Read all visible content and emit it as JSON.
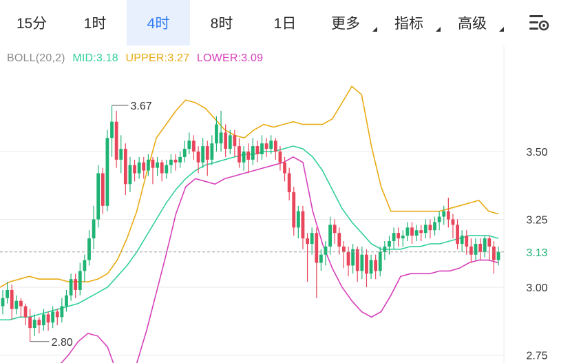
{
  "tabs": [
    {
      "label": "15分",
      "active": false,
      "dropdown": false
    },
    {
      "label": "1时",
      "active": false,
      "dropdown": false
    },
    {
      "label": "4时",
      "active": true,
      "dropdown": false
    },
    {
      "label": "8时",
      "active": false,
      "dropdown": false
    },
    {
      "label": "1日",
      "active": false,
      "dropdown": false
    },
    {
      "label": "更多",
      "active": false,
      "dropdown": true
    },
    {
      "label": "指标",
      "active": false,
      "dropdown": true
    },
    {
      "label": "高级",
      "active": false,
      "dropdown": true
    }
  ],
  "settings_icon": "chart-settings-gear-icon",
  "indicator": {
    "name": "BOLL(20,2)",
    "mid": "MID:3.18",
    "upper": "UPPER:3.27",
    "lower": "LOWER:3.09"
  },
  "colors": {
    "up": "#1fb374",
    "down": "#e8465b",
    "mid": "#2fcf9a",
    "upper": "#e9aa10",
    "lower": "#d63fba",
    "grid": "#e9e9e9",
    "active_tab_bg": "#e7f0fc",
    "active_tab_text": "#2f7df6",
    "axis_text": "#333333"
  },
  "chart_data": {
    "type": "candlestick",
    "y_axis_ticks": [
      "3.50",
      "3.25",
      "3.00",
      "2.75"
    ],
    "ylim": [
      2.73,
      3.78
    ],
    "current_price_label": "3.13",
    "current_price": 3.13,
    "max_label": "3.67",
    "max_value": 3.67,
    "min_label": "2.80",
    "min_value": 2.8,
    "candles": [
      [
        2.93,
        2.96,
        2.9,
        2.99
      ],
      [
        2.96,
        2.99,
        2.94,
        3.02
      ],
      [
        2.99,
        2.92,
        2.88,
        3.01
      ],
      [
        2.92,
        2.95,
        2.9,
        2.97
      ],
      [
        2.95,
        2.93,
        2.89,
        2.96
      ],
      [
        2.93,
        2.89,
        2.86,
        2.94
      ],
      [
        2.89,
        2.85,
        2.8,
        2.92
      ],
      [
        2.85,
        2.88,
        2.82,
        2.9
      ],
      [
        2.88,
        2.86,
        2.83,
        2.89
      ],
      [
        2.86,
        2.9,
        2.84,
        2.92
      ],
      [
        2.9,
        2.87,
        2.84,
        2.91
      ],
      [
        2.87,
        2.91,
        2.85,
        2.93
      ],
      [
        2.91,
        2.89,
        2.86,
        2.92
      ],
      [
        2.89,
        2.93,
        2.87,
        2.96
      ],
      [
        2.93,
        2.97,
        2.91,
        2.99
      ],
      [
        2.97,
        3.03,
        2.95,
        3.05
      ],
      [
        3.03,
        2.99,
        2.96,
        3.05
      ],
      [
        2.99,
        3.06,
        2.97,
        3.09
      ],
      [
        3.06,
        3.1,
        3.02,
        3.12
      ],
      [
        3.1,
        3.18,
        3.08,
        3.21
      ],
      [
        3.18,
        3.25,
        3.14,
        3.3
      ],
      [
        3.25,
        3.42,
        3.22,
        3.45
      ],
      [
        3.42,
        3.3,
        3.27,
        3.44
      ],
      [
        3.3,
        3.55,
        3.28,
        3.58
      ],
      [
        3.55,
        3.61,
        3.48,
        3.67
      ],
      [
        3.61,
        3.47,
        3.44,
        3.65
      ],
      [
        3.47,
        3.51,
        3.42,
        3.56
      ],
      [
        3.51,
        3.38,
        3.34,
        3.53
      ],
      [
        3.38,
        3.45,
        3.35,
        3.48
      ],
      [
        3.45,
        3.42,
        3.39,
        3.47
      ],
      [
        3.42,
        3.46,
        3.4,
        3.48
      ],
      [
        3.46,
        3.43,
        3.4,
        3.48
      ],
      [
        3.43,
        3.47,
        3.41,
        3.49
      ],
      [
        3.47,
        3.44,
        3.38,
        3.48
      ],
      [
        3.44,
        3.46,
        3.41,
        3.48
      ],
      [
        3.46,
        3.42,
        3.39,
        3.47
      ],
      [
        3.42,
        3.45,
        3.4,
        3.47
      ],
      [
        3.45,
        3.47,
        3.42,
        3.49
      ],
      [
        3.47,
        3.46,
        3.43,
        3.49
      ],
      [
        3.46,
        3.48,
        3.44,
        3.5
      ],
      [
        3.48,
        3.51,
        3.46,
        3.54
      ],
      [
        3.51,
        3.54,
        3.49,
        3.57
      ],
      [
        3.54,
        3.5,
        3.47,
        3.56
      ],
      [
        3.5,
        3.46,
        3.42,
        3.52
      ],
      [
        3.46,
        3.52,
        3.44,
        3.55
      ],
      [
        3.52,
        3.47,
        3.41,
        3.54
      ],
      [
        3.47,
        3.53,
        3.45,
        3.56
      ],
      [
        3.53,
        3.6,
        3.5,
        3.63
      ],
      [
        3.53,
        3.57,
        3.5,
        3.65
      ],
      [
        3.57,
        3.51,
        3.48,
        3.6
      ],
      [
        3.51,
        3.56,
        3.49,
        3.58
      ],
      [
        3.56,
        3.52,
        3.48,
        3.58
      ],
      [
        3.52,
        3.46,
        3.44,
        3.55
      ],
      [
        3.46,
        3.5,
        3.43,
        3.52
      ],
      [
        3.5,
        3.47,
        3.42,
        3.53
      ],
      [
        3.47,
        3.52,
        3.45,
        3.55
      ],
      [
        3.52,
        3.49,
        3.46,
        3.54
      ],
      [
        3.49,
        3.53,
        3.47,
        3.56
      ],
      [
        3.53,
        3.51,
        3.48,
        3.55
      ],
      [
        3.51,
        3.54,
        3.49,
        3.56
      ],
      [
        3.54,
        3.5,
        3.47,
        3.55
      ],
      [
        3.5,
        3.46,
        3.43,
        3.52
      ],
      [
        3.46,
        3.42,
        3.39,
        3.48
      ],
      [
        3.42,
        3.35,
        3.32,
        3.44
      ],
      [
        3.35,
        3.22,
        3.19,
        3.37
      ],
      [
        3.22,
        3.28,
        3.18,
        3.3
      ],
      [
        3.28,
        3.18,
        3.14,
        3.3
      ],
      [
        3.18,
        3.16,
        3.02,
        3.2
      ],
      [
        3.16,
        3.2,
        3.12,
        3.22
      ],
      [
        3.2,
        3.09,
        2.96,
        3.22
      ],
      [
        3.09,
        3.12,
        3.06,
        3.14
      ],
      [
        3.12,
        3.15,
        3.08,
        3.17
      ],
      [
        3.15,
        3.23,
        3.12,
        3.26
      ],
      [
        3.23,
        3.2,
        3.16,
        3.25
      ],
      [
        3.2,
        3.15,
        3.12,
        3.22
      ],
      [
        3.15,
        3.13,
        3.07,
        3.17
      ],
      [
        3.13,
        3.08,
        3.04,
        3.15
      ],
      [
        3.08,
        3.14,
        3.05,
        3.16
      ],
      [
        3.14,
        3.06,
        3.02,
        3.15
      ],
      [
        3.06,
        3.12,
        3.03,
        3.15
      ],
      [
        3.12,
        3.05,
        3.0,
        3.14
      ],
      [
        3.05,
        3.1,
        3.03,
        3.12
      ],
      [
        3.1,
        3.06,
        3.03,
        3.12
      ],
      [
        3.06,
        3.13,
        3.04,
        3.15
      ],
      [
        3.13,
        3.15,
        3.1,
        3.17
      ],
      [
        3.15,
        3.17,
        3.12,
        3.19
      ],
      [
        3.17,
        3.2,
        3.14,
        3.22
      ],
      [
        3.2,
        3.18,
        3.15,
        3.22
      ],
      [
        3.18,
        3.19,
        3.15,
        3.21
      ],
      [
        3.19,
        3.22,
        3.17,
        3.24
      ],
      [
        3.22,
        3.19,
        3.16,
        3.24
      ],
      [
        3.19,
        3.21,
        3.17,
        3.23
      ],
      [
        3.21,
        3.2,
        3.17,
        3.23
      ],
      [
        3.2,
        3.23,
        3.18,
        3.25
      ],
      [
        3.23,
        3.21,
        3.18,
        3.25
      ],
      [
        3.21,
        3.24,
        3.19,
        3.26
      ],
      [
        3.24,
        3.26,
        3.21,
        3.28
      ],
      [
        3.26,
        3.28,
        3.23,
        3.3
      ],
      [
        3.28,
        3.25,
        3.22,
        3.33
      ],
      [
        3.25,
        3.23,
        3.18,
        3.27
      ],
      [
        3.23,
        3.16,
        3.14,
        3.25
      ],
      [
        3.16,
        3.19,
        3.13,
        3.21
      ],
      [
        3.19,
        3.15,
        3.12,
        3.21
      ],
      [
        3.15,
        3.12,
        3.09,
        3.18
      ],
      [
        3.12,
        3.16,
        3.1,
        3.18
      ],
      [
        3.16,
        3.13,
        3.1,
        3.18
      ],
      [
        3.13,
        3.18,
        3.11,
        3.19
      ],
      [
        3.18,
        3.15,
        3.1,
        3.19
      ],
      [
        3.15,
        3.1,
        3.05,
        3.17
      ],
      [
        3.1,
        3.13,
        3.08,
        3.15
      ]
    ],
    "upper": [
      3.0,
      3.02,
      3.03,
      3.04,
      3.03,
      3.03,
      3.03,
      3.02,
      3.02,
      3.02,
      3.03,
      3.05,
      3.1,
      3.18,
      3.28,
      3.42,
      3.55,
      3.6,
      3.65,
      3.69,
      3.68,
      3.66,
      3.62,
      3.58,
      3.56,
      3.55,
      3.58,
      3.6,
      3.59,
      3.6,
      3.61,
      3.6,
      3.6,
      3.6,
      3.62,
      3.68,
      3.74,
      3.71,
      3.52,
      3.37,
      3.28,
      3.28,
      3.28,
      3.28,
      3.28,
      3.28,
      3.29,
      3.3,
      3.31,
      3.32,
      3.28,
      3.27
    ],
    "mid": [
      2.88,
      2.88,
      2.89,
      2.89,
      2.9,
      2.91,
      2.92,
      2.93,
      2.94,
      2.96,
      2.98,
      3.0,
      3.04,
      3.08,
      3.13,
      3.19,
      3.25,
      3.31,
      3.36,
      3.4,
      3.43,
      3.45,
      3.46,
      3.47,
      3.48,
      3.49,
      3.49,
      3.5,
      3.5,
      3.51,
      3.52,
      3.51,
      3.48,
      3.43,
      3.36,
      3.29,
      3.24,
      3.2,
      3.16,
      3.14,
      3.14,
      3.14,
      3.15,
      3.15,
      3.16,
      3.16,
      3.17,
      3.18,
      3.19,
      3.19,
      3.19,
      3.18
    ],
    "lower": [
      2.69,
      2.67,
      2.66,
      2.66,
      2.66,
      2.68,
      2.71,
      2.75,
      2.8,
      2.83,
      2.82,
      2.78,
      2.68,
      2.66,
      2.72,
      2.84,
      2.98,
      3.12,
      3.27,
      3.37,
      3.4,
      3.39,
      3.38,
      3.4,
      3.41,
      3.42,
      3.43,
      3.44,
      3.45,
      3.46,
      3.48,
      3.46,
      3.28,
      3.16,
      3.07,
      3.0,
      2.95,
      2.91,
      2.89,
      2.91,
      2.97,
      3.04,
      3.05,
      3.05,
      3.05,
      3.06,
      3.06,
      3.07,
      3.09,
      3.1,
      3.1,
      3.09
    ]
  }
}
